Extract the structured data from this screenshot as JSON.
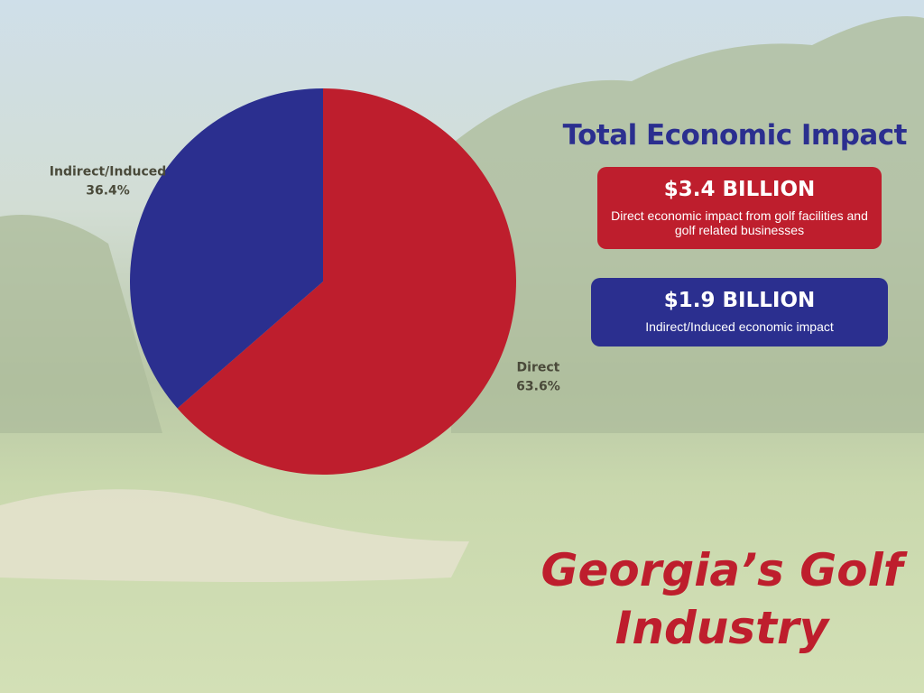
{
  "chart_data": {
    "type": "pie",
    "categories": [
      "Direct",
      "Indirect/Induced"
    ],
    "values": [
      63.6,
      36.4
    ],
    "value_labels": [
      "63.6%",
      "36.4%"
    ],
    "colors": [
      "#be1e2d",
      "#2b2f8f"
    ]
  },
  "panel": {
    "heading": "Total Economic Impact",
    "cards": [
      {
        "amount": "$3.4 BILLION",
        "description": "Direct economic impact from golf facilities and golf related businesses"
      },
      {
        "amount": "$1.9 BILLION",
        "description": "Indirect/Induced economic impact"
      }
    ]
  },
  "footer_title": "Georgia’s Golf Industry"
}
